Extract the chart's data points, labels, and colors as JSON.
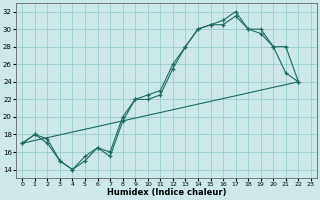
{
  "xlabel": "Humidex (Indice chaleur)",
  "xlim": [
    -0.5,
    23.5
  ],
  "ylim": [
    13,
    33
  ],
  "xticks": [
    0,
    1,
    2,
    3,
    4,
    5,
    6,
    7,
    8,
    9,
    10,
    11,
    12,
    13,
    14,
    15,
    16,
    17,
    18,
    19,
    20,
    21,
    22,
    23
  ],
  "yticks": [
    14,
    16,
    18,
    20,
    22,
    24,
    26,
    28,
    30,
    32
  ],
  "background_color": "#cce8e8",
  "grid_color": "#99cccc",
  "line_color": "#1a6b60",
  "series": [
    {
      "x": [
        0,
        1,
        2,
        3,
        4,
        5,
        6,
        7,
        8,
        9,
        10,
        11,
        12,
        13,
        14,
        15,
        16,
        17,
        18,
        19,
        20,
        21,
        22
      ],
      "y": [
        17,
        18,
        17,
        15,
        14,
        15,
        16.5,
        16,
        20,
        22,
        22,
        22.5,
        25.5,
        28,
        30,
        30.5,
        30.5,
        31.5,
        30,
        30,
        28,
        25,
        24
      ],
      "marker": true
    },
    {
      "x": [
        0,
        1,
        2,
        3,
        4,
        5,
        6,
        7,
        8,
        9,
        10,
        11,
        12,
        13,
        14,
        15,
        16,
        17,
        18,
        19,
        20,
        21,
        22
      ],
      "y": [
        17,
        18,
        17.5,
        15,
        14,
        15.5,
        16.5,
        15.5,
        19.5,
        22,
        22.5,
        23,
        26,
        28,
        30,
        30.5,
        31,
        32,
        30,
        29.5,
        28,
        28,
        24
      ],
      "marker": true
    },
    {
      "x": [
        0,
        22
      ],
      "y": [
        17,
        24
      ],
      "marker": false
    }
  ]
}
